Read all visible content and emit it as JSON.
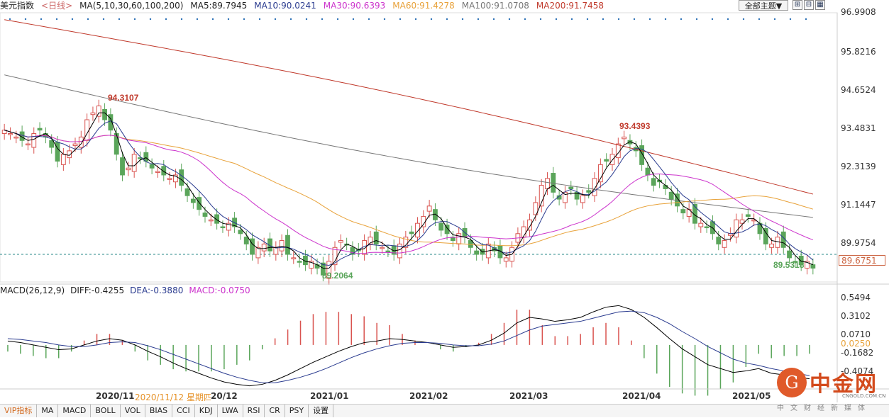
{
  "legend": {
    "name": "美元指数",
    "period": "<日线>",
    "ma_label": "MA(5,10,30,60,100,200)",
    "ma5": "MA5:89.7945",
    "ma10": "MA10:90.0241",
    "ma30": "MA30:90.6393",
    "ma60": "MA60:91.4278",
    "ma100": "MA100:91.0708",
    "ma200": "MA200:91.7458"
  },
  "toolbar": {
    "theme_label": "全部主题▼",
    "icons": [
      "grid-plus-icon",
      "grid-minus-icon",
      "grid-icon"
    ]
  },
  "price_axis": {
    "ticks": [
      "96.9908",
      "95.8216",
      "94.6524",
      "93.4831",
      "92.3139",
      "91.1447",
      "89.9754"
    ],
    "current": "89.6751"
  },
  "annotations": {
    "high1": "94.3107",
    "high2": "93.4393",
    "low1": "89.2064",
    "low2": "89.5318"
  },
  "macd_legend": {
    "name": "MACD(26,12,9)",
    "diff": "DIFF:-0.4255",
    "dea": "DEA:-0.3880",
    "macd": "MACD:-0.0750"
  },
  "macd_axis": {
    "ticks": [
      "0.5494",
      "0.3102",
      "0.0710",
      "-0.1682",
      "-0.4074"
    ],
    "current": "0.0250"
  },
  "date_axis": {
    "labels": [
      "2020/11",
      "2021/01",
      "2021/02",
      "2021/03",
      "2021/04",
      "2021/05"
    ],
    "hover": "2020/11/12 星期四",
    "hover_tail": "20/12"
  },
  "tabs": [
    "VIP指标",
    "MA",
    "MACD",
    "BOLL",
    "VOL",
    "BIAS",
    "CCI",
    "KDJ",
    "LWA",
    "RSI",
    "CR",
    "PSY",
    "设置"
  ],
  "logo": {
    "glyph": "G",
    "text": "中金网",
    "url": "CNGOLD.COM.CN",
    "sub": "中文财经新媒体"
  },
  "colors": {
    "up": "#d9534f",
    "down": "#5aa55a",
    "ma5": "#000000",
    "ma10": "#2a3b8f",
    "ma30": "#cc33cc",
    "ma60": "#e8a23a",
    "ma100": "#777777",
    "ma200": "#c0392b",
    "macd_up": "#d9534f",
    "macd_down": "#5aa55a"
  },
  "chart_data": {
    "type": "candlestick",
    "title": "美元指数",
    "ylim": [
      89.2,
      97.0
    ],
    "ticks": [
      96.9908,
      95.8216,
      94.6524,
      93.4831,
      92.3139,
      91.1447,
      89.9754
    ],
    "x_labels": [
      "2020/11",
      "2021/01",
      "2021/02",
      "2021/03",
      "2021/04",
      "2021/05"
    ],
    "close": [
      93.6,
      93.5,
      93.4,
      93.3,
      93.2,
      93.5,
      93.6,
      93.4,
      93.1,
      92.7,
      92.9,
      93.0,
      93.2,
      93.4,
      93.9,
      94.1,
      94.3,
      93.9,
      93.6,
      92.9,
      92.3,
      92.5,
      92.9,
      92.8,
      92.7,
      92.5,
      92.4,
      92.3,
      92.2,
      92.3,
      92.0,
      91.7,
      91.5,
      91.3,
      91.1,
      91.0,
      90.9,
      90.8,
      90.9,
      90.8,
      90.6,
      90.3,
      90.0,
      90.2,
      90.3,
      90.1,
      90.2,
      90.4,
      90.0,
      89.9,
      89.8,
      89.7,
      89.8,
      89.6,
      89.4,
      89.8,
      90.2,
      90.4,
      90.3,
      90.0,
      90.1,
      90.4,
      90.5,
      90.3,
      90.2,
      90.1,
      90.0,
      90.3,
      90.5,
      90.6,
      90.9,
      91.1,
      91.4,
      91.0,
      90.7,
      90.6,
      90.4,
      90.6,
      90.5,
      90.2,
      90.0,
      90.0,
      90.3,
      90.1,
      89.9,
      89.9,
      90.2,
      90.6,
      90.8,
      91.0,
      91.5,
      92.0,
      92.2,
      91.8,
      91.6,
      91.8,
      91.9,
      91.6,
      91.7,
      91.8,
      92.2,
      92.6,
      92.7,
      92.9,
      93.2,
      93.4,
      93.2,
      93.0,
      92.6,
      92.3,
      92.0,
      92.1,
      91.9,
      91.6,
      91.4,
      91.2,
      91.3,
      90.9,
      90.9,
      90.8,
      90.6,
      90.3,
      90.4,
      90.6,
      91.0,
      91.0,
      91.1,
      91.0,
      90.6,
      90.3,
      90.3,
      90.5,
      90.2,
      89.9,
      89.8,
      89.7,
      89.8,
      89.6
    ],
    "ma5_last": 89.7945,
    "ma10_last": 90.0241,
    "ma30_last": 90.6393,
    "ma60_last": 91.4278,
    "ma100_last": 91.0708,
    "ma200_last": 91.7458,
    "macd": {
      "ylim": [
        -0.55,
        0.62
      ],
      "diff": [
        0.05,
        0.03,
        0.0,
        -0.03,
        -0.06,
        -0.05,
        0.0,
        0.05,
        0.08,
        0.06,
        0.0,
        -0.08,
        -0.15,
        -0.23,
        -0.3,
        -0.36,
        -0.42,
        -0.47,
        -0.5,
        -0.52,
        -0.5,
        -0.45,
        -0.38,
        -0.3,
        -0.22,
        -0.15,
        -0.08,
        -0.02,
        0.03,
        0.05,
        0.08,
        0.07,
        0.05,
        0.03,
        0.0,
        -0.03,
        -0.02,
        0.0,
        0.06,
        0.15,
        0.28,
        0.35,
        0.33,
        0.3,
        0.32,
        0.35,
        0.42,
        0.48,
        0.5,
        0.45,
        0.35,
        0.22,
        0.08,
        -0.05,
        -0.15,
        -0.25,
        -0.3,
        -0.35,
        -0.33,
        -0.3,
        -0.36,
        -0.38,
        -0.41,
        -0.43
      ],
      "dea": [
        0.08,
        0.07,
        0.05,
        0.03,
        0.0,
        -0.02,
        -0.02,
        0.0,
        0.03,
        0.04,
        0.03,
        -0.01,
        -0.06,
        -0.12,
        -0.18,
        -0.24,
        -0.3,
        -0.36,
        -0.41,
        -0.45,
        -0.48,
        -0.48,
        -0.45,
        -0.41,
        -0.36,
        -0.3,
        -0.23,
        -0.16,
        -0.1,
        -0.05,
        -0.01,
        0.02,
        0.03,
        0.03,
        0.02,
        0.0,
        -0.01,
        -0.01,
        0.01,
        0.05,
        0.12,
        0.19,
        0.24,
        0.26,
        0.28,
        0.3,
        0.34,
        0.38,
        0.42,
        0.43,
        0.41,
        0.35,
        0.27,
        0.17,
        0.08,
        -0.02,
        -0.1,
        -0.18,
        -0.23,
        -0.26,
        -0.3,
        -0.33,
        -0.36,
        -0.39
      ],
      "hist": [
        -0.06,
        -0.08,
        -0.1,
        -0.12,
        -0.12,
        -0.06,
        0.04,
        0.1,
        0.1,
        0.04,
        -0.06,
        -0.14,
        -0.18,
        -0.22,
        -0.24,
        -0.24,
        -0.24,
        -0.22,
        -0.18,
        -0.14,
        -0.04,
        0.06,
        0.14,
        0.22,
        0.28,
        0.3,
        0.3,
        0.28,
        0.26,
        0.2,
        0.18,
        0.1,
        0.04,
        0.0,
        -0.04,
        -0.06,
        -0.02,
        0.02,
        0.1,
        0.2,
        0.32,
        0.32,
        0.18,
        0.08,
        0.08,
        0.1,
        0.16,
        0.2,
        0.16,
        0.04,
        -0.12,
        -0.26,
        -0.38,
        -0.44,
        -0.46,
        -0.46,
        -0.4,
        -0.34,
        -0.2,
        -0.08,
        -0.12,
        -0.1,
        -0.1,
        -0.08
      ]
    }
  }
}
